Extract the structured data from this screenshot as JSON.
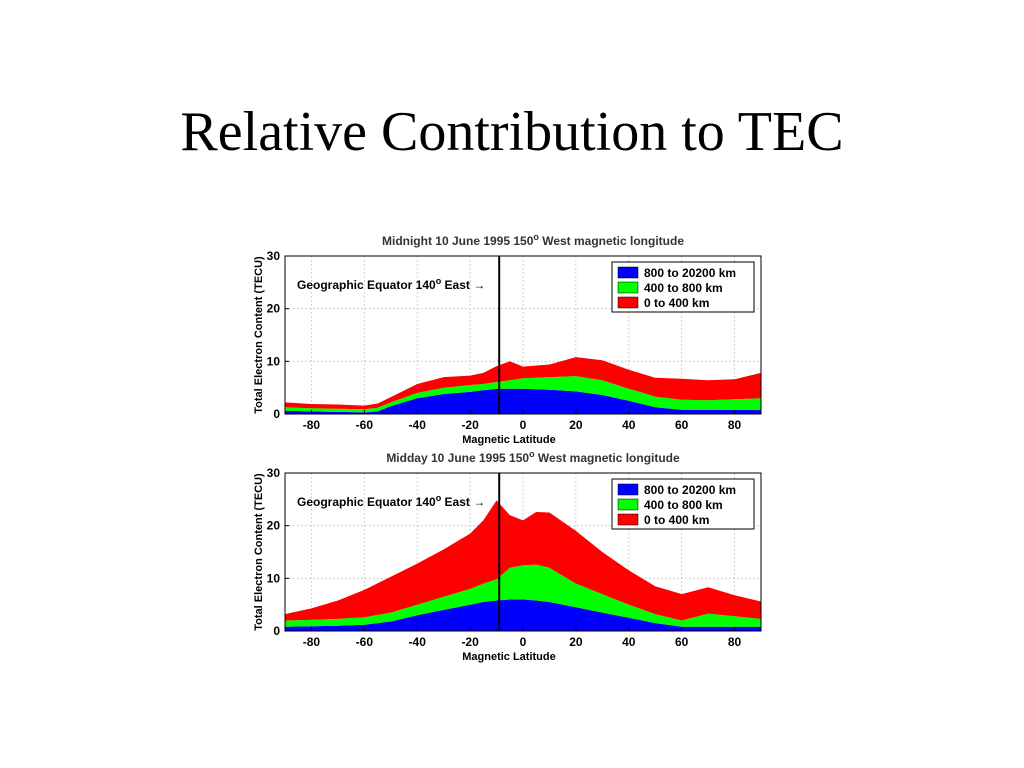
{
  "slide": {
    "title": "Relative Contribution to TEC"
  },
  "chart_data": [
    {
      "type": "area",
      "title": "Midnight 10 June 1995 150° West magnetic longitude",
      "title_main": "Midnight 10 June 1995 150",
      "title_sup": "o",
      "title_rest": " West magnetic longitude",
      "xlabel": "Magnetic Latitude",
      "ylabel": "Total Electron Content (TECU)",
      "xlim": [
        -90,
        90
      ],
      "ylim": [
        0,
        30
      ],
      "xticks": [
        -80,
        -60,
        -40,
        -20,
        0,
        20,
        40,
        60,
        80
      ],
      "yticks": [
        0,
        10,
        20,
        30
      ],
      "grid": true,
      "legend_position": "top-right",
      "annotation": {
        "text": "Geographic Equator 140",
        "sup": "o",
        "rest": " East →",
        "x": -9
      },
      "x": [
        -90,
        -80,
        -70,
        -60,
        -55,
        -50,
        -40,
        -30,
        -20,
        -15,
        -10,
        -5,
        0,
        10,
        20,
        30,
        40,
        50,
        60,
        70,
        80,
        90
      ],
      "series": [
        {
          "name": "800 to 20200 km",
          "color": "#0000ff",
          "values": [
            0.6,
            0.5,
            0.4,
            0.3,
            0.5,
            1.5,
            3.0,
            3.8,
            4.2,
            4.5,
            4.8,
            4.8,
            4.8,
            4.6,
            4.3,
            3.6,
            2.5,
            1.3,
            0.8,
            0.8,
            0.8,
            0.8
          ]
        },
        {
          "name": "400 to 800 km",
          "color": "#00ff00",
          "values": [
            0.7,
            0.6,
            0.6,
            0.6,
            0.7,
            0.7,
            1.0,
            1.2,
            1.3,
            1.2,
            1.3,
            1.6,
            2.0,
            2.4,
            2.9,
            2.8,
            2.3,
            2.0,
            1.9,
            1.8,
            2.0,
            2.2
          ]
        },
        {
          "name": "0 to 400 km",
          "color": "#ff0000",
          "values": [
            0.9,
            0.8,
            0.8,
            0.7,
            0.8,
            1.0,
            1.7,
            2.0,
            1.8,
            2.1,
            3.0,
            3.6,
            2.2,
            2.4,
            3.6,
            3.8,
            3.6,
            3.6,
            4.0,
            3.8,
            3.8,
            4.8
          ]
        }
      ]
    },
    {
      "type": "area",
      "title": "Midday 10 June 1995 150° West magnetic longitude",
      "title_main": "Midday 10 June 1995 150",
      "title_sup": "o",
      "title_rest": " West magnetic longitude",
      "xlabel": "Magnetic Latitude",
      "ylabel": "Total Electron Content (TECU)",
      "xlim": [
        -90,
        90
      ],
      "ylim": [
        0,
        30
      ],
      "xticks": [
        -80,
        -60,
        -40,
        -20,
        0,
        20,
        40,
        60,
        80
      ],
      "yticks": [
        0,
        10,
        20,
        30
      ],
      "grid": true,
      "legend_position": "top-right",
      "annotation": {
        "text": "Geographic Equator 140",
        "sup": "o",
        "rest": " East →",
        "x": -9
      },
      "x": [
        -90,
        -80,
        -70,
        -60,
        -50,
        -40,
        -30,
        -20,
        -15,
        -10,
        -5,
        0,
        5,
        10,
        20,
        30,
        40,
        50,
        60,
        70,
        80,
        90
      ],
      "series": [
        {
          "name": "800 to 20200 km",
          "color": "#0000ff",
          "values": [
            0.8,
            0.9,
            1.0,
            1.2,
            1.8,
            3.0,
            4.0,
            5.0,
            5.5,
            5.8,
            6.0,
            6.0,
            5.8,
            5.5,
            4.5,
            3.5,
            2.5,
            1.5,
            0.8,
            0.8,
            0.8,
            0.8
          ]
        },
        {
          "name": "400 to 800 km",
          "color": "#00ff00",
          "values": [
            1.2,
            1.2,
            1.3,
            1.4,
            1.7,
            2.0,
            2.5,
            3.0,
            3.5,
            4.0,
            6.0,
            6.5,
            6.8,
            6.5,
            4.5,
            3.5,
            2.5,
            1.7,
            1.2,
            2.5,
            2.0,
            1.5
          ]
        },
        {
          "name": "0 to 400 km",
          "color": "#ff0000",
          "values": [
            1.2,
            2.2,
            3.5,
            5.2,
            6.8,
            7.8,
            9.0,
            10.5,
            12.0,
            15.0,
            10.0,
            8.5,
            10.0,
            10.5,
            10.0,
            8.0,
            6.5,
            5.3,
            5.0,
            5.0,
            4.0,
            3.3
          ]
        }
      ]
    }
  ]
}
